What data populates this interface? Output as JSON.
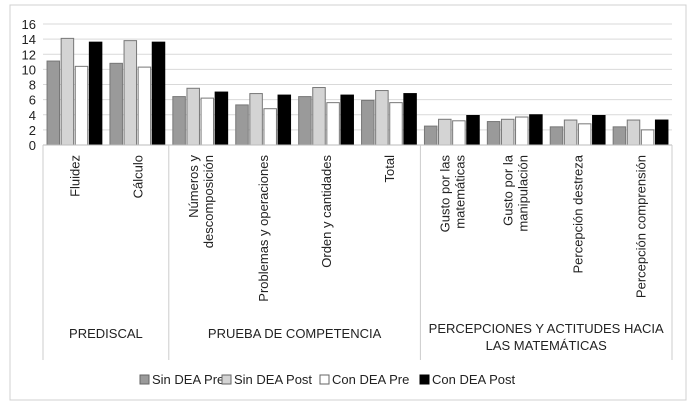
{
  "chart_data": {
    "type": "bar",
    "title": "",
    "xlabel": "",
    "ylabel": "",
    "ylim": [
      0,
      16
    ],
    "yticks": [
      0,
      2,
      4,
      6,
      8,
      10,
      12,
      14,
      16
    ],
    "grid": true,
    "legend_position": "bottom",
    "categories": [
      [
        "Fluidez"
      ],
      [
        "Cálculo"
      ],
      [
        "Números y",
        "descomposición"
      ],
      [
        "Problemas y operaciones"
      ],
      [
        "Orden y cantidades"
      ],
      [
        "Total"
      ],
      [
        "Gusto por las",
        "matemáticas"
      ],
      [
        "Gusto por la",
        "manipulación"
      ],
      [
        "Percepción destreza"
      ],
      [
        "Percepción comprensión"
      ]
    ],
    "groups": [
      {
        "label": [
          "PREDISCAL"
        ],
        "count": 2
      },
      {
        "label": [
          "PRUEBA DE COMPETENCIA"
        ],
        "count": 4
      },
      {
        "label": [
          "PERCEPCIONES Y ACTITUDES HACIA",
          "LAS MATEMÁTICAS"
        ],
        "count": 4
      }
    ],
    "series": [
      {
        "name": "Sin DEA Pre",
        "color": "#9a9a9a",
        "values": [
          11.1,
          10.8,
          6.4,
          5.3,
          6.4,
          5.9,
          2.5,
          3.1,
          2.4,
          2.4
        ]
      },
      {
        "name": "Sin DEA Post",
        "color": "#d4d4d4",
        "values": [
          14.1,
          13.8,
          7.5,
          6.8,
          7.6,
          7.2,
          3.4,
          3.4,
          3.3,
          3.3
        ]
      },
      {
        "name": "Con DEA Pre",
        "color": "#ffffff",
        "values": [
          10.4,
          10.3,
          6.2,
          4.8,
          5.6,
          5.6,
          3.2,
          3.7,
          2.8,
          2.0
        ]
      },
      {
        "name": "Con DEA Post",
        "color": "#000000",
        "values": [
          13.6,
          13.6,
          7.0,
          6.6,
          6.6,
          6.8,
          3.9,
          4.0,
          3.9,
          3.3
        ]
      }
    ]
  }
}
